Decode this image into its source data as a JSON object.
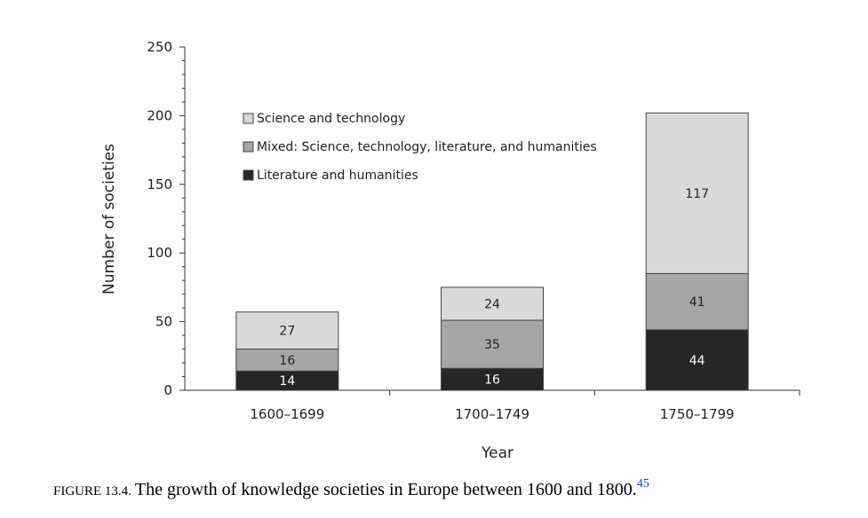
{
  "chart_data": {
    "type": "bar",
    "stacked": true,
    "categories": [
      "1600–1699",
      "1700–1749",
      "1750–1799"
    ],
    "series": [
      {
        "name": "Literature and humanities",
        "values": [
          14,
          16,
          44
        ],
        "color": "#262626",
        "label_color": "#ffffff"
      },
      {
        "name": "Mixed: Science, technology, literature, and humanities",
        "values": [
          16,
          35,
          41
        ],
        "color": "#a6a6a6",
        "label_color": "#222222"
      },
      {
        "name": "Science and technology",
        "values": [
          27,
          24,
          117
        ],
        "color": "#d9d9d9",
        "label_color": "#222222"
      }
    ],
    "legend_order": [
      2,
      1,
      0
    ],
    "legend_position": "top-left",
    "xlabel": "Year",
    "ylabel": "Number of societies",
    "ylim": [
      0,
      250
    ],
    "yticks": [
      0,
      50,
      100,
      150,
      200,
      250
    ],
    "grid": false
  },
  "caption": {
    "figure_label": "FIGURE 13.4.",
    "text": "The growth of knowledge societies in Europe between 1600 and 1800.",
    "footnote": "45"
  }
}
